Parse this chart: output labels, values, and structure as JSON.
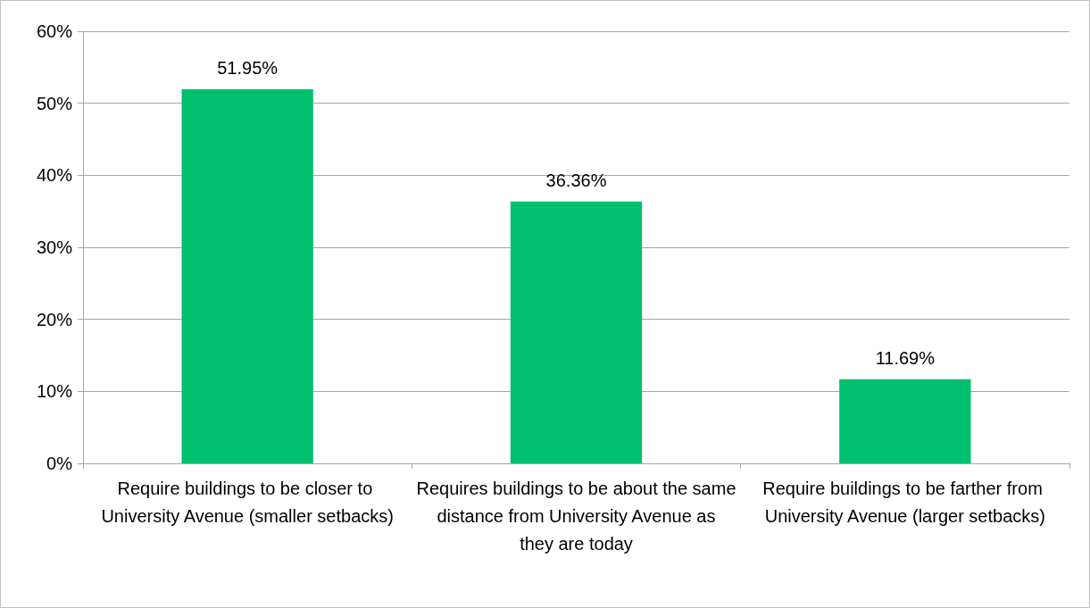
{
  "chart_data": {
    "type": "bar",
    "categories": [
      "Require buildings to be closer to University Avenue (smaller setbacks)",
      "Requires buildings to be about the same distance from University Avenue as they are today",
      "Require buildings to be farther from University Avenue (larger setbacks)"
    ],
    "values": [
      51.95,
      36.36,
      11.69
    ],
    "value_labels": [
      "51.95%",
      "36.36%",
      "11.69%"
    ],
    "color": "#00bf6f",
    "ylim": [
      0,
      60
    ],
    "yticks": [
      {
        "value": 0,
        "label": "0%"
      },
      {
        "value": 10,
        "label": "10%"
      },
      {
        "value": 20,
        "label": "20%"
      },
      {
        "value": 30,
        "label": "30%"
      },
      {
        "value": 40,
        "label": "40%"
      },
      {
        "value": 50,
        "label": "50%"
      },
      {
        "value": 60,
        "label": "60%"
      }
    ],
    "grid": "y"
  }
}
